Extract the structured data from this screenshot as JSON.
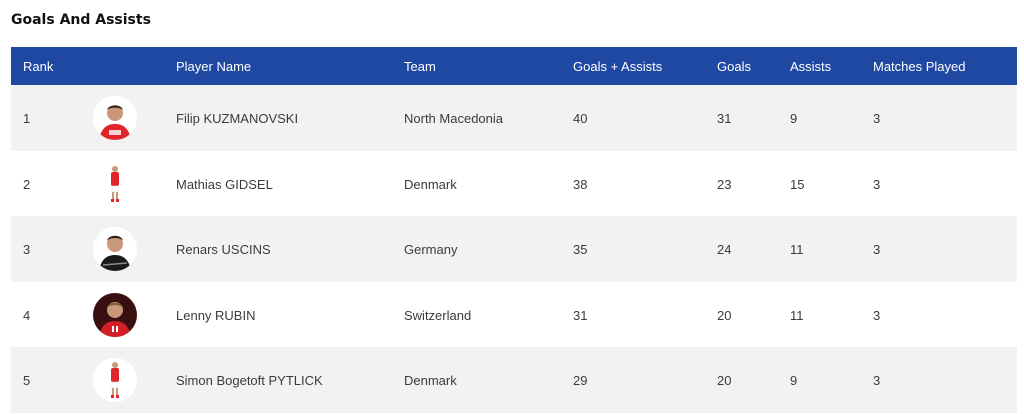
{
  "title": "Goals And Assists",
  "columns": {
    "rank": "Rank",
    "player_name": "Player Name",
    "team": "Team",
    "goals_assists": "Goals + Assists",
    "goals": "Goals",
    "assists": "Assists",
    "matches_played": "Matches Played"
  },
  "rows": [
    {
      "rank": "1",
      "name": "Filip KUZMANOVSKI",
      "team": "North Macedonia",
      "goals_assists": "40",
      "goals": "31",
      "assists": "9",
      "matches": "3",
      "photo_icon": "player-photo-icon"
    },
    {
      "rank": "2",
      "name": "Mathias GIDSEL",
      "team": "Denmark",
      "goals_assists": "38",
      "goals": "23",
      "assists": "15",
      "matches": "3",
      "photo_icon": "player-photo-icon"
    },
    {
      "rank": "3",
      "name": "Renars USCINS",
      "team": "Germany",
      "goals_assists": "35",
      "goals": "24",
      "assists": "11",
      "matches": "3",
      "photo_icon": "player-photo-icon"
    },
    {
      "rank": "4",
      "name": "Lenny RUBIN",
      "team": "Switzerland",
      "goals_assists": "31",
      "goals": "20",
      "assists": "11",
      "matches": "3",
      "photo_icon": "player-photo-icon"
    },
    {
      "rank": "5",
      "name": "Simon Bogetoft PYTLICK",
      "team": "Denmark",
      "goals_assists": "29",
      "goals": "20",
      "assists": "9",
      "matches": "3",
      "photo_icon": "player-photo-icon"
    }
  ],
  "colors": {
    "header_bg": "#1f48a3",
    "row_alt_bg": "#f2f2f2",
    "jersey_red": "#e0262c"
  }
}
